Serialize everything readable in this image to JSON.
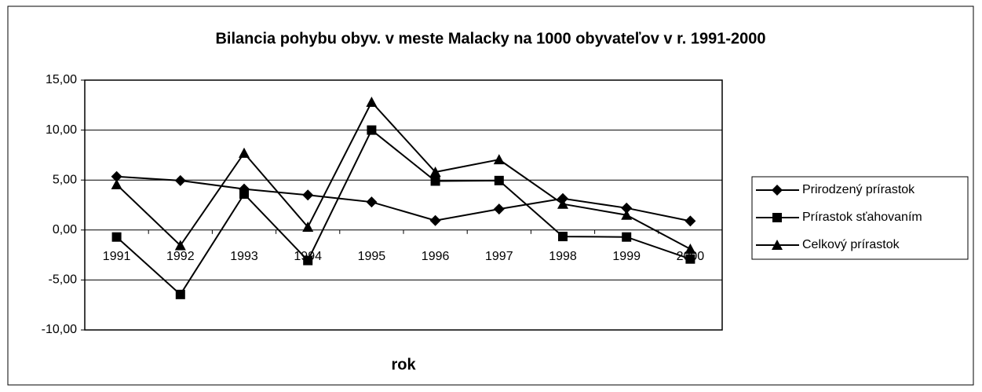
{
  "chart_data": {
    "type": "line",
    "title": "Bilancia pohybu obyv. v meste Malacky  na 1000 obyvateľov v r. 1991-2000",
    "x_label": "rok",
    "categories": [
      "1991",
      "1992",
      "1993",
      "1994",
      "1995",
      "1996",
      "1997",
      "1998",
      "1999",
      "2000"
    ],
    "series": [
      {
        "name": "Prirodzený prírastok",
        "color": "#000000",
        "marker": "diamond",
        "values": [
          5.35,
          4.95,
          4.1,
          3.5,
          2.8,
          0.95,
          2.1,
          3.15,
          2.2,
          0.9
        ]
      },
      {
        "name": "Prírastok sťahovaním",
        "color": "#000000",
        "marker": "square",
        "values": [
          -0.7,
          -6.45,
          3.6,
          -3.05,
          10.0,
          4.9,
          4.95,
          -0.65,
          -0.7,
          -2.9
        ]
      },
      {
        "name": "Celkový prírastok",
        "color": "#000000",
        "marker": "triangle",
        "values": [
          4.55,
          -1.55,
          7.7,
          0.3,
          12.8,
          5.8,
          7.05,
          2.6,
          1.5,
          -1.9
        ]
      }
    ],
    "ylim": [
      -10,
      15
    ],
    "yticks": [
      {
        "value": -10,
        "label": "-10,00"
      },
      {
        "value": -5,
        "label": "-5,00"
      },
      {
        "value": 0,
        "label": "0,00"
      },
      {
        "value": 5,
        "label": "5,00"
      },
      {
        "value": 10,
        "label": "10,00"
      },
      {
        "value": 15,
        "label": "15,00"
      }
    ],
    "grid": true,
    "legend": "right"
  }
}
